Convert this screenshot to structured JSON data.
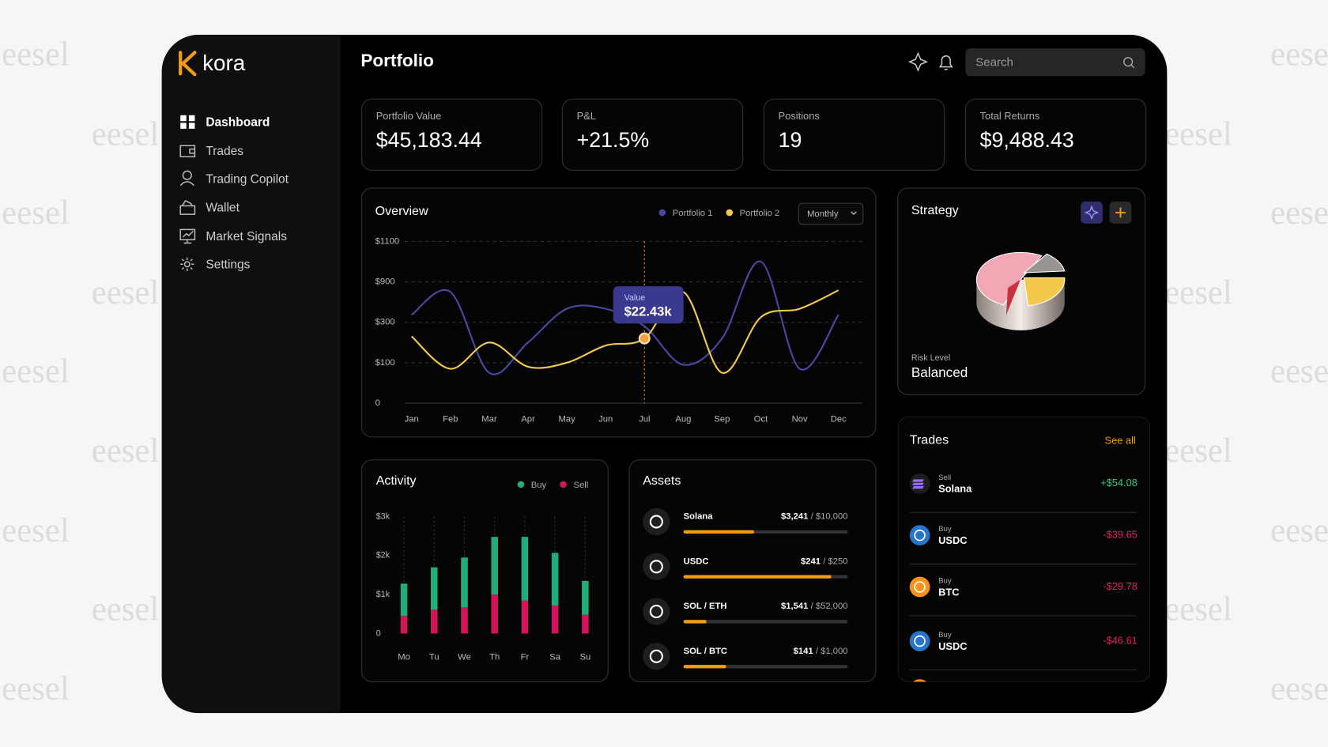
{
  "watermark": "eesel",
  "sidebar": {
    "brand": "kora",
    "nav": [
      "Dashboard",
      "Trades",
      "Trading Copilot",
      "Wallet",
      "Market Signals",
      "Settings"
    ]
  },
  "header": {
    "title": "Portfolio",
    "search_placeholder": "Search"
  },
  "stats": [
    {
      "label": "Portfolio Value",
      "value": "$45,183.44"
    },
    {
      "label": "P&L",
      "value": "+21.5%"
    },
    {
      "label": "Positions",
      "value": "19"
    },
    {
      "label": "Total Returns",
      "value": "$9,488.43"
    }
  ],
  "chart_data": [
    {
      "type": "line",
      "title": "Overview",
      "categories": [
        "Jan",
        "Feb",
        "Mar",
        "Apr",
        "May",
        "Jun",
        "Jul",
        "Aug",
        "Sep",
        "Oct",
        "Nov",
        "Dec"
      ],
      "series": [
        {
          "name": "Portfolio 1",
          "color": "#4a47a3",
          "values": [
            410,
            750,
            75,
            200,
            500,
            500,
            280,
            95,
            220,
            1000,
            85,
            410
          ]
        },
        {
          "name": "Portfolio 2",
          "color": "#f2c94c",
          "values": [
            230,
            85,
            200,
            90,
            100,
            185,
            220,
            750,
            75,
            375,
            500,
            775
          ]
        }
      ],
      "ylim": [
        0,
        1100
      ],
      "yticks": [
        0,
        {
          "value": 100,
          "label": "$100"
        },
        {
          "value": 300,
          "label": "$300"
        },
        {
          "value": 900,
          "label": "$900"
        },
        {
          "value": 1100,
          "label": "$1100"
        }
      ],
      "grid": true,
      "period": "Monthly",
      "annotation": {
        "label": "Value",
        "value": "$22.43k"
      }
    },
    {
      "type": "bar",
      "stacked": true,
      "title": "Activity",
      "categories": [
        "Mo",
        "Tu",
        "We",
        "Th",
        "Fr",
        "Sa",
        "Su"
      ],
      "series": [
        {
          "name": "Buy",
          "color": "#1fae7a",
          "values": [
            830,
            1090,
            1280,
            1480,
            1630,
            1350,
            870
          ]
        },
        {
          "name": "Sell",
          "color": "#d4145a",
          "values": [
            450,
            610,
            670,
            1000,
            850,
            720,
            480
          ]
        }
      ],
      "ylim": [
        0,
        3000
      ],
      "yticks": [
        0,
        {
          "value": 1000,
          "label": "$1k"
        },
        {
          "value": 2000,
          "label": "$2k"
        },
        {
          "value": 3000,
          "label": "$3k"
        }
      ]
    }
  ],
  "strategy": {
    "title": "Strategy",
    "risk_label": "Risk Level",
    "risk": "Balanced"
  },
  "assets": {
    "title": "Assets",
    "items": [
      {
        "name": "Solana",
        "amount": "$3,241",
        "target": "/ $10,000",
        "progress": 43
      },
      {
        "name": "USDC",
        "amount": "$241",
        "target": "/ $250",
        "progress": 90
      },
      {
        "name": "SOL / ETH",
        "amount": "$1,541",
        "target": "/ $52,000",
        "progress": 14
      },
      {
        "name": "SOL / BTC",
        "amount": "$141",
        "target": "/ $1,000",
        "progress": 26
      }
    ]
  },
  "trades": {
    "title": "Trades",
    "see_all": "See all",
    "items": [
      {
        "side": "Sell",
        "asset": "Solana",
        "amount": "+$54.08"
      },
      {
        "side": "Buy",
        "asset": "USDC",
        "amount": "-$39.65"
      },
      {
        "side": "Buy",
        "asset": "BTC",
        "amount": "-$29.78"
      },
      {
        "side": "Buy",
        "asset": "USDC",
        "amount": "-$46.61"
      }
    ]
  }
}
